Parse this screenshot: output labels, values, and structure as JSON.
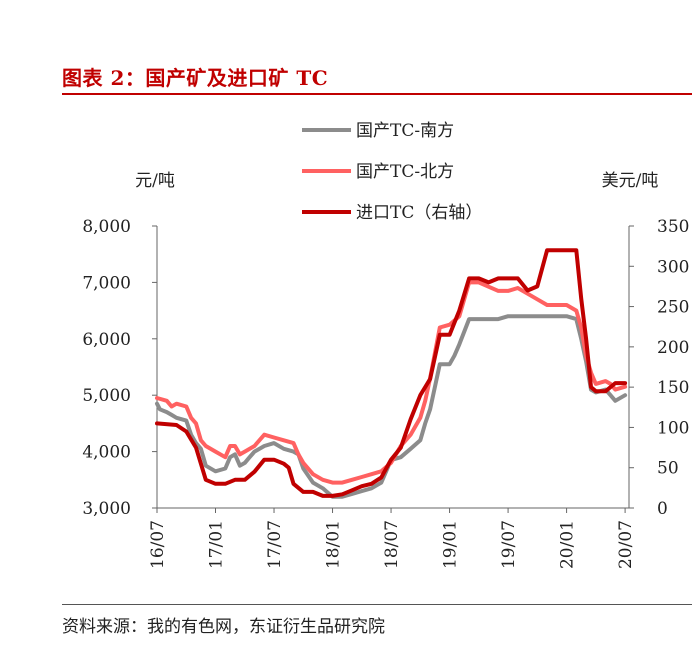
{
  "figure": {
    "title": "图表 2：国产矿及进口矿 TC",
    "source": "资料来源：我的有色网，东证衍生品研究院"
  },
  "colors": {
    "title_red": "#c00000",
    "series_south": "#8c8c8c",
    "series_north": "#ff6161",
    "series_import": "#c00000"
  },
  "chart_data": {
    "type": "line",
    "left_unit_label": "元/吨",
    "right_unit_label": "美元/吨",
    "left_axis": {
      "min": 3000,
      "max": 8000,
      "ticks": [
        3000,
        4000,
        5000,
        6000,
        7000,
        8000
      ],
      "tick_labels": [
        "3,000",
        "4,000",
        "5,000",
        "6,000",
        "7,000",
        "8,000"
      ]
    },
    "right_axis": {
      "min": 0,
      "max": 350,
      "ticks": [
        0,
        50,
        100,
        150,
        200,
        250,
        300,
        350
      ],
      "tick_labels": [
        "0",
        "50",
        "100",
        "150",
        "200",
        "250",
        "300",
        "350"
      ]
    },
    "x_axis": {
      "tick_labels": [
        "16/07",
        "17/01",
        "17/07",
        "18/01",
        "18/07",
        "19/01",
        "19/07",
        "20/01",
        "20/07"
      ],
      "tick_months": [
        0,
        6,
        12,
        18,
        24,
        30,
        36,
        42,
        48
      ],
      "range_months": [
        0,
        48.4
      ]
    },
    "legend_position": "top-center",
    "grid": false,
    "series": [
      {
        "name": "国产TC-南方",
        "axis": "left",
        "color": "#8c8c8c",
        "points": [
          [
            0,
            4850
          ],
          [
            0.3,
            4750
          ],
          [
            1,
            4700
          ],
          [
            1.5,
            4650
          ],
          [
            2,
            4600
          ],
          [
            3,
            4550
          ],
          [
            3.5,
            4300
          ],
          [
            4,
            4150
          ],
          [
            4.5,
            4050
          ],
          [
            5,
            3750
          ],
          [
            6,
            3650
          ],
          [
            7,
            3700
          ],
          [
            7.5,
            3900
          ],
          [
            8,
            3950
          ],
          [
            8.5,
            3750
          ],
          [
            9,
            3800
          ],
          [
            9.5,
            3900
          ],
          [
            10,
            4000
          ],
          [
            11,
            4100
          ],
          [
            12,
            4150
          ],
          [
            13,
            4050
          ],
          [
            14,
            4000
          ],
          [
            14.5,
            3950
          ],
          [
            15,
            3700
          ],
          [
            16,
            3450
          ],
          [
            17,
            3350
          ],
          [
            18,
            3200
          ],
          [
            19,
            3200
          ],
          [
            20,
            3250
          ],
          [
            21,
            3300
          ],
          [
            22,
            3350
          ],
          [
            23,
            3450
          ],
          [
            24,
            3850
          ],
          [
            25,
            3900
          ],
          [
            26,
            4050
          ],
          [
            27,
            4200
          ],
          [
            27.5,
            4500
          ],
          [
            28,
            4750
          ],
          [
            29,
            5550
          ],
          [
            30,
            5550
          ],
          [
            30.5,
            5700
          ],
          [
            31,
            5900
          ],
          [
            32,
            6350
          ],
          [
            33,
            6350
          ],
          [
            35,
            6350
          ],
          [
            36,
            6400
          ],
          [
            38,
            6400
          ],
          [
            40,
            6400
          ],
          [
            42,
            6400
          ],
          [
            43,
            6350
          ],
          [
            43.5,
            6000
          ],
          [
            44,
            5600
          ],
          [
            44.5,
            5100
          ],
          [
            45,
            5050
          ],
          [
            46,
            5100
          ],
          [
            46.5,
            5000
          ],
          [
            47,
            4900
          ],
          [
            48,
            5000
          ]
        ]
      },
      {
        "name": "国产TC-北方",
        "axis": "left",
        "color": "#ff6161",
        "points": [
          [
            0,
            4950
          ],
          [
            1,
            4900
          ],
          [
            1.5,
            4800
          ],
          [
            2,
            4850
          ],
          [
            3,
            4800
          ],
          [
            3.5,
            4600
          ],
          [
            4,
            4500
          ],
          [
            4.5,
            4200
          ],
          [
            5,
            4100
          ],
          [
            6,
            4000
          ],
          [
            7,
            3900
          ],
          [
            7.5,
            4100
          ],
          [
            8,
            4100
          ],
          [
            8.5,
            3950
          ],
          [
            9,
            4000
          ],
          [
            10,
            4100
          ],
          [
            11,
            4300
          ],
          [
            12,
            4250
          ],
          [
            13,
            4200
          ],
          [
            14,
            4150
          ],
          [
            14.5,
            3950
          ],
          [
            15,
            3800
          ],
          [
            16,
            3600
          ],
          [
            17,
            3500
          ],
          [
            18,
            3450
          ],
          [
            19,
            3450
          ],
          [
            20,
            3500
          ],
          [
            21,
            3550
          ],
          [
            22,
            3600
          ],
          [
            23,
            3650
          ],
          [
            24,
            3800
          ],
          [
            25,
            4100
          ],
          [
            26,
            4300
          ],
          [
            27,
            4600
          ],
          [
            27.5,
            4900
          ],
          [
            28,
            5300
          ],
          [
            29,
            6200
          ],
          [
            30,
            6250
          ],
          [
            31,
            6400
          ],
          [
            32,
            7000
          ],
          [
            33,
            7000
          ],
          [
            35,
            6850
          ],
          [
            36,
            6850
          ],
          [
            37,
            6900
          ],
          [
            38,
            6800
          ],
          [
            39,
            6700
          ],
          [
            40,
            6600
          ],
          [
            41,
            6600
          ],
          [
            42,
            6600
          ],
          [
            43,
            6500
          ],
          [
            43.5,
            6200
          ],
          [
            44,
            5700
          ],
          [
            44.5,
            5400
          ],
          [
            45,
            5200
          ],
          [
            46,
            5250
          ],
          [
            46.5,
            5200
          ],
          [
            47,
            5100
          ],
          [
            48,
            5150
          ]
        ]
      },
      {
        "name": "进口TC（右轴）",
        "axis": "right",
        "color": "#c00000",
        "points": [
          [
            0,
            105
          ],
          [
            2,
            103
          ],
          [
            3,
            95
          ],
          [
            3.5,
            85
          ],
          [
            4,
            75
          ],
          [
            5,
            35
          ],
          [
            6,
            30
          ],
          [
            7,
            30
          ],
          [
            8,
            35
          ],
          [
            9,
            35
          ],
          [
            10,
            45
          ],
          [
            11,
            60
          ],
          [
            12,
            60
          ],
          [
            13,
            55
          ],
          [
            13.5,
            50
          ],
          [
            14,
            30
          ],
          [
            15,
            20
          ],
          [
            16,
            20
          ],
          [
            17,
            15
          ],
          [
            18,
            15
          ],
          [
            19,
            17
          ],
          [
            20,
            22
          ],
          [
            21,
            27
          ],
          [
            22,
            30
          ],
          [
            23,
            38
          ],
          [
            24,
            60
          ],
          [
            25,
            75
          ],
          [
            26,
            110
          ],
          [
            27,
            140
          ],
          [
            27.5,
            150
          ],
          [
            28,
            160
          ],
          [
            29,
            215
          ],
          [
            30,
            215
          ],
          [
            30.5,
            230
          ],
          [
            31,
            245
          ],
          [
            32,
            285
          ],
          [
            33,
            285
          ],
          [
            34,
            280
          ],
          [
            35,
            285
          ],
          [
            36,
            285
          ],
          [
            37,
            285
          ],
          [
            38,
            270
          ],
          [
            39,
            275
          ],
          [
            40,
            320
          ],
          [
            41,
            320
          ],
          [
            42,
            320
          ],
          [
            43,
            320
          ],
          [
            43.5,
            260
          ],
          [
            44,
            210
          ],
          [
            44.5,
            150
          ],
          [
            45,
            145
          ],
          [
            46,
            145
          ],
          [
            46.5,
            150
          ],
          [
            47,
            155
          ],
          [
            48,
            155
          ]
        ]
      }
    ]
  }
}
